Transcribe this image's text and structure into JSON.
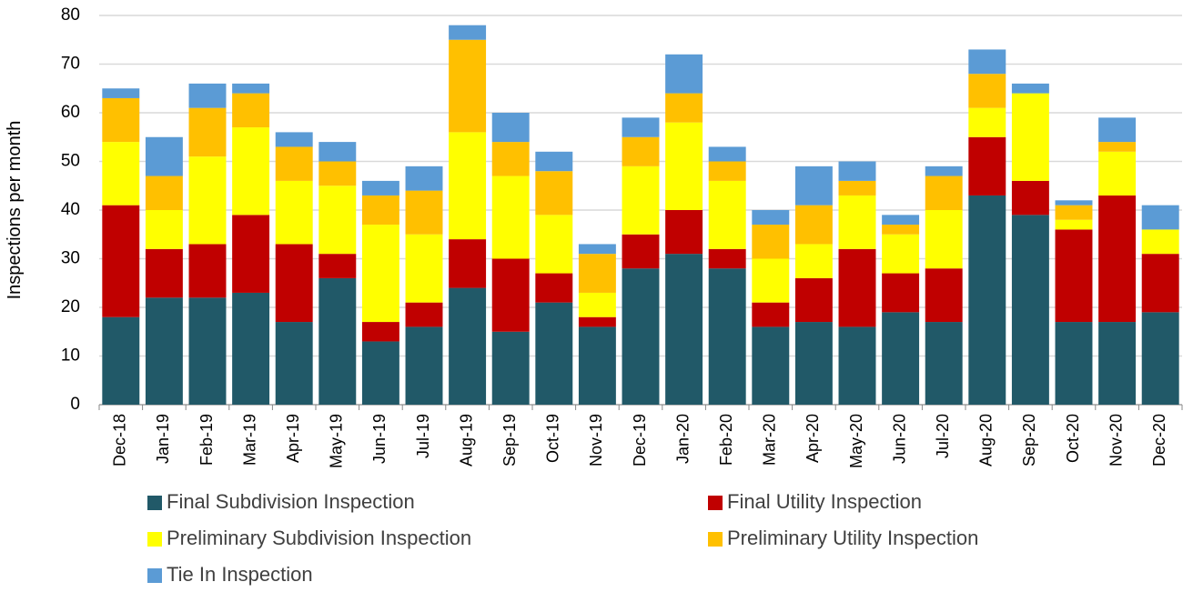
{
  "chart_data": {
    "type": "stacked_bar",
    "y_label": "Inspections per month",
    "categories": [
      "Dec-18",
      "Jan-19",
      "Feb-19",
      "Mar-19",
      "Apr-19",
      "May-19",
      "Jun-19",
      "Jul-19",
      "Aug-19",
      "Sep-19",
      "Oct-19",
      "Nov-19",
      "Dec-19",
      "Jan-20",
      "Feb-20",
      "Mar-20",
      "Apr-20",
      "May-20",
      "Jun-20",
      "Jul-20",
      "Aug-20",
      "Sep-20",
      "Oct-20",
      "Nov-20",
      "Dec-20"
    ],
    "series": [
      {
        "name": "Final Subdivision Inspection",
        "color": "#215968",
        "values": [
          18,
          22,
          22,
          23,
          17,
          26,
          13,
          16,
          24,
          15,
          21,
          16,
          28,
          31,
          28,
          16,
          17,
          16,
          19,
          17,
          43,
          39,
          17,
          17,
          19
        ]
      },
      {
        "name": "Final Utility Inspection",
        "color": "#c00000",
        "values": [
          23,
          10,
          11,
          16,
          16,
          5,
          4,
          5,
          10,
          15,
          6,
          2,
          7,
          9,
          4,
          5,
          9,
          16,
          8,
          11,
          12,
          7,
          19,
          26,
          12
        ]
      },
      {
        "name": "Preliminary Subdivision Inspection",
        "color": "#ffff00",
        "values": [
          13,
          8,
          18,
          18,
          13,
          14,
          20,
          14,
          22,
          17,
          12,
          5,
          14,
          18,
          14,
          9,
          7,
          11,
          8,
          12,
          6,
          18,
          2,
          9,
          5
        ]
      },
      {
        "name": "Preliminary Utility Inspection",
        "color": "#ffc000",
        "values": [
          9,
          7,
          10,
          7,
          7,
          5,
          6,
          9,
          19,
          7,
          9,
          8,
          6,
          6,
          4,
          7,
          8,
          3,
          2,
          7,
          7,
          0,
          3,
          2,
          0
        ]
      },
      {
        "name": "Tie In Inspection",
        "color": "#5b9bd5",
        "values": [
          2,
          8,
          5,
          2,
          3,
          4,
          3,
          5,
          3,
          6,
          4,
          2,
          4,
          8,
          3,
          3,
          8,
          4,
          2,
          2,
          5,
          2,
          1,
          5,
          5
        ]
      }
    ],
    "ylim": [
      0,
      80
    ],
    "yticks": [
      0,
      10,
      20,
      30,
      40,
      50,
      60,
      70,
      80
    ],
    "grid": true,
    "legend": "bottom"
  }
}
